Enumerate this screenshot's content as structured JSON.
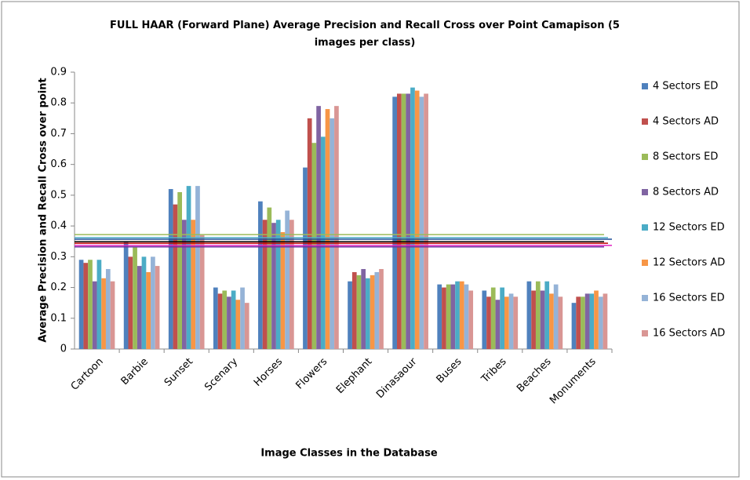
{
  "chart_data": {
    "type": "bar",
    "title": "FULL HAAR (Forward Plane) Average Precision and Recall Cross over Point Camapison (5 images per class)",
    "x_label": "Image Classes  in  the Database",
    "y_label": "Average Precision  and  Recall  Cross over point",
    "categories": [
      "Cartoon",
      "Barbie",
      "Sunset",
      "Scenary",
      "Horses",
      "Flowers",
      "Elephant",
      "Dinasaour",
      "Buses",
      "Tribes",
      "Beaches",
      "Monuments"
    ],
    "series": [
      {
        "name": "4 Sectors ED",
        "color": "#4f81bd",
        "values": [
          0.29,
          0.35,
          0.52,
          0.2,
          0.48,
          0.59,
          0.22,
          0.82,
          0.21,
          0.19,
          0.22,
          0.15
        ]
      },
      {
        "name": "4 Sectors AD",
        "color": "#c0504d",
        "values": [
          0.28,
          0.3,
          0.47,
          0.18,
          0.42,
          0.75,
          0.25,
          0.83,
          0.2,
          0.17,
          0.19,
          0.17
        ]
      },
      {
        "name": "8 Sectors ED",
        "color": "#9bbb59",
        "values": [
          0.29,
          0.33,
          0.51,
          0.19,
          0.46,
          0.67,
          0.24,
          0.83,
          0.21,
          0.2,
          0.22,
          0.17
        ]
      },
      {
        "name": "8 Sectors AD",
        "color": "#8064a2",
        "values": [
          0.22,
          0.27,
          0.42,
          0.17,
          0.41,
          0.79,
          0.26,
          0.83,
          0.21,
          0.16,
          0.19,
          0.18
        ]
      },
      {
        "name": "12 Sectors ED",
        "color": "#4bacc6",
        "values": [
          0.29,
          0.3,
          0.53,
          0.19,
          0.42,
          0.69,
          0.23,
          0.85,
          0.22,
          0.2,
          0.22,
          0.18
        ]
      },
      {
        "name": "12 Sectors AD",
        "color": "#f79646",
        "values": [
          0.23,
          0.25,
          0.42,
          0.16,
          0.38,
          0.78,
          0.24,
          0.84,
          0.22,
          0.17,
          0.18,
          0.19
        ]
      },
      {
        "name": "16 Sectors ED",
        "color": "#95b3d7",
        "values": [
          0.26,
          0.3,
          0.53,
          0.2,
          0.45,
          0.75,
          0.25,
          0.82,
          0.21,
          0.18,
          0.21,
          0.17
        ]
      },
      {
        "name": "16 Sectors AD",
        "color": "#d99694",
        "values": [
          0.22,
          0.27,
          0.37,
          0.15,
          0.42,
          0.79,
          0.26,
          0.83,
          0.19,
          0.17,
          0.17,
          0.18
        ]
      }
    ],
    "reference_lines": [
      {
        "value": 0.372,
        "color": "#9bbb59"
      },
      {
        "value": 0.362,
        "color": "#4bacc6"
      },
      {
        "value": 0.357,
        "color": "#1f4e99"
      },
      {
        "value": 0.349,
        "color": "#000000"
      },
      {
        "value": 0.344,
        "color": "#c00000"
      },
      {
        "value": 0.337,
        "color": "#e020c0"
      },
      {
        "value": 0.332,
        "color": "#7030a0"
      }
    ],
    "ylim": [
      0,
      0.9
    ],
    "yticks": [
      0,
      0.1,
      0.2,
      0.3,
      0.4,
      0.5,
      0.6,
      0.7,
      0.8,
      0.9
    ],
    "legend": "right"
  }
}
